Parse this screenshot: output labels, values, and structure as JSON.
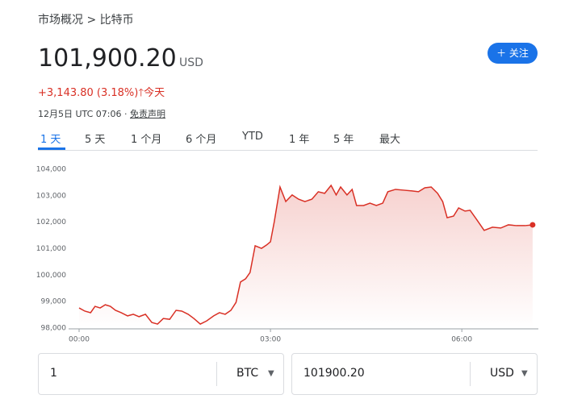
{
  "header": {
    "breadcrumb": "市场概况 > 比特币",
    "price": "101,900.20",
    "currency": "USD",
    "change": "+3,143.80 (3.18%)",
    "period": "今天",
    "timestamp": "12月5日 UTC 07:06 ·",
    "disclaimer": "免责声明",
    "follow_button": "关注"
  },
  "tabs": [
    "1 天",
    "5 天",
    "1 个月",
    "6 个月",
    "YTD",
    "1 年",
    "5 年",
    "最大"
  ],
  "chart_data": {
    "type": "line",
    "color": "#d93025",
    "grid": false,
    "x": [
      0,
      0.09,
      0.18,
      0.25,
      0.33,
      0.41,
      0.49,
      0.57,
      0.66,
      0.76,
      0.85,
      0.94,
      1.04,
      1.14,
      1.23,
      1.32,
      1.42,
      1.52,
      1.61,
      1.71,
      1.8,
      1.9,
      2.0,
      2.11,
      2.2,
      2.29,
      2.38,
      2.46,
      2.53,
      2.61,
      2.68,
      2.76,
      2.86,
      2.94,
      3.0,
      3.06,
      3.15,
      3.24,
      3.34,
      3.44,
      3.54,
      3.65,
      3.75,
      3.85,
      3.95,
      4.03,
      4.1,
      4.2,
      4.28,
      4.35,
      4.46,
      4.56,
      4.66,
      4.76,
      4.84,
      4.96,
      5.09,
      5.22,
      5.32,
      5.42,
      5.52,
      5.62,
      5.7,
      5.77,
      5.87,
      5.95,
      6.05,
      6.13,
      6.23,
      6.35,
      6.48,
      6.61,
      6.73,
      6.86,
      6.99,
      7.11
    ],
    "values": [
      98760,
      98640,
      98580,
      98820,
      98760,
      98880,
      98820,
      98670,
      98580,
      98460,
      98520,
      98430,
      98520,
      98210,
      98150,
      98360,
      98330,
      98670,
      98640,
      98520,
      98360,
      98150,
      98270,
      98460,
      98580,
      98520,
      98670,
      98970,
      99740,
      99860,
      100100,
      101110,
      101010,
      101140,
      101260,
      102020,
      103330,
      102780,
      103030,
      102870,
      102780,
      102870,
      103150,
      103090,
      103390,
      103030,
      103330,
      103030,
      103240,
      102630,
      102630,
      102720,
      102630,
      102720,
      103150,
      103240,
      103210,
      103180,
      103150,
      103300,
      103330,
      103090,
      102780,
      102170,
      102230,
      102540,
      102420,
      102450,
      102110,
      101690,
      101810,
      101780,
      101900,
      101870,
      101870,
      101900
    ],
    "xlim": [
      0,
      7.2
    ],
    "xticks": [
      {
        "value": 0,
        "label": "00:00"
      },
      {
        "value": 3,
        "label": "03:00"
      },
      {
        "value": 6,
        "label": "06:00"
      }
    ],
    "ylim": [
      98000,
      104000
    ],
    "yticks": [
      {
        "value": 98000,
        "label": "98,000"
      },
      {
        "value": 99000,
        "label": "99,000"
      },
      {
        "value": 100000,
        "label": "100,000"
      },
      {
        "value": 101000,
        "label": "101,000"
      },
      {
        "value": 102000,
        "label": "102,000"
      },
      {
        "value": 103000,
        "label": "103,000"
      },
      {
        "value": 104000,
        "label": "104,000"
      }
    ]
  },
  "converter": {
    "amount": "1",
    "from": "BTC",
    "result": "101900.20",
    "to": "USD"
  }
}
